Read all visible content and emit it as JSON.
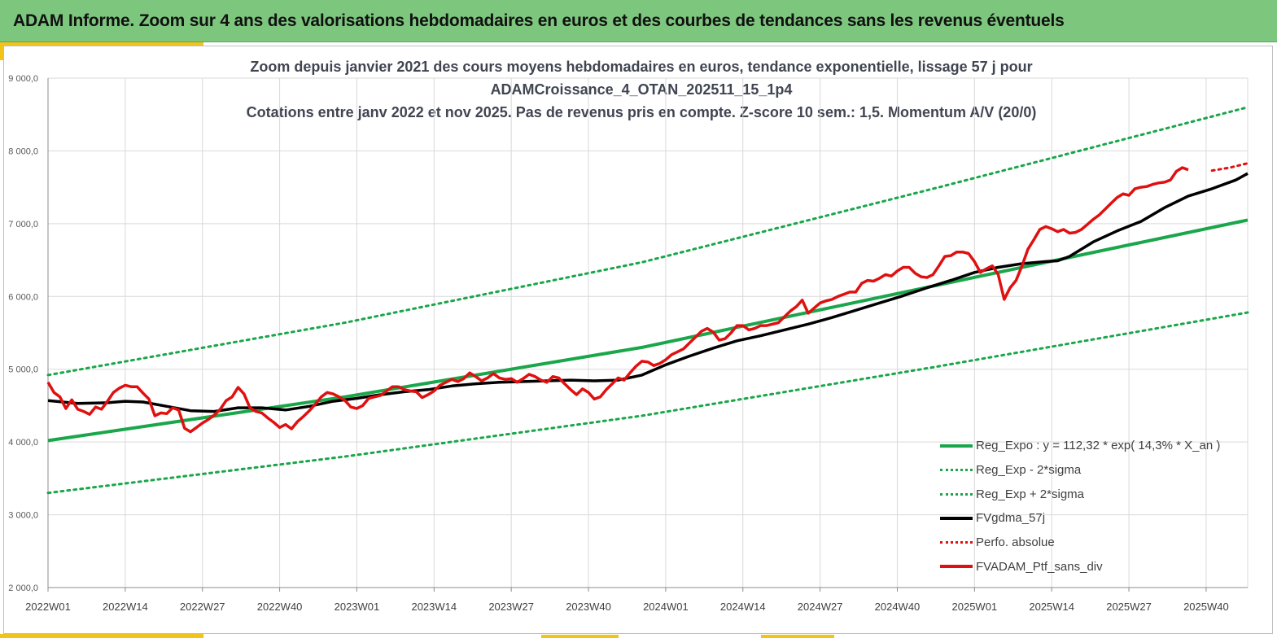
{
  "banner": {
    "title": "ADAM Informe. Zoom sur 4 ans des valorisations hebdomadaires en euros et des courbes de tendances sans les revenus éventuels"
  },
  "chart_data": {
    "type": "line",
    "title_lines": [
      "Zoom depuis janvier 2021 des cours moyens hebdomadaires  en euros, tendance exponentielle, lissage 57 j pour",
      "ADAMCroissance_4_OTAN_202511_15_1p4",
      "Cotations entre janv 2022 et nov 2025. Pas de revenus pris en compte. Z-score 10 sem.: 1,5. Momentum A/V (20/0)"
    ],
    "ylim": [
      2000,
      9000
    ],
    "yticks": [
      {
        "value": 2000,
        "label": "2 000,0"
      },
      {
        "value": 3000,
        "label": "3 000,0"
      },
      {
        "value": 4000,
        "label": "4 000,0"
      },
      {
        "value": 5000,
        "label": "5 000,0"
      },
      {
        "value": 6000,
        "label": "6 000,0"
      },
      {
        "value": 7000,
        "label": "7 000,0"
      },
      {
        "value": 8000,
        "label": "8 000,0"
      },
      {
        "value": 9000,
        "label": "9 000,0"
      }
    ],
    "xlim": [
      0,
      202
    ],
    "xticks": [
      {
        "value": 0,
        "label": "2022W01"
      },
      {
        "value": 13,
        "label": "2022W14"
      },
      {
        "value": 26,
        "label": "2022W27"
      },
      {
        "value": 39,
        "label": "2022W40"
      },
      {
        "value": 52,
        "label": "2023W01"
      },
      {
        "value": 65,
        "label": "2023W14"
      },
      {
        "value": 78,
        "label": "2023W27"
      },
      {
        "value": 91,
        "label": "2023W40"
      },
      {
        "value": 104,
        "label": "2024W01"
      },
      {
        "value": 117,
        "label": "2024W14"
      },
      {
        "value": 130,
        "label": "2024W27"
      },
      {
        "value": 143,
        "label": "2024W40"
      },
      {
        "value": 156,
        "label": "2025W01"
      },
      {
        "value": 169,
        "label": "2025W14"
      },
      {
        "value": 182,
        "label": "2025W27"
      },
      {
        "value": 195,
        "label": "2025W40"
      }
    ],
    "grid": true,
    "legend_position": "bottom-right",
    "series": [
      {
        "name": "Reg_Expo : y = 112,32 * exp( 14,3% *  X_an )",
        "color": "#1aa64a",
        "style": "solid",
        "width": 4,
        "points": [
          [
            0,
            4020
          ],
          [
            50,
            4620
          ],
          [
            100,
            5300
          ],
          [
            150,
            6160
          ],
          [
            202,
            7050
          ]
        ]
      },
      {
        "name": "Reg_Exp - 2*sigma",
        "color": "#1aa64a",
        "style": "dotted",
        "width": 3,
        "points": [
          [
            0,
            3300
          ],
          [
            50,
            3800
          ],
          [
            100,
            4360
          ],
          [
            150,
            5040
          ],
          [
            202,
            5780
          ]
        ]
      },
      {
        "name": "Reg_Exp + 2*sigma",
        "color": "#1aa64a",
        "style": "dotted",
        "width": 3,
        "points": [
          [
            0,
            4920
          ],
          [
            50,
            5640
          ],
          [
            100,
            6470
          ],
          [
            150,
            7500
          ],
          [
            202,
            8600
          ]
        ]
      },
      {
        "name": "FVgdma_57j",
        "color": "#000000",
        "style": "solid",
        "width": 3.5,
        "points": [
          [
            0,
            4570
          ],
          [
            5,
            4530
          ],
          [
            10,
            4540
          ],
          [
            13,
            4560
          ],
          [
            16,
            4550
          ],
          [
            20,
            4490
          ],
          [
            24,
            4430
          ],
          [
            28,
            4420
          ],
          [
            32,
            4470
          ],
          [
            36,
            4470
          ],
          [
            40,
            4440
          ],
          [
            44,
            4490
          ],
          [
            48,
            4560
          ],
          [
            52,
            4600
          ],
          [
            56,
            4650
          ],
          [
            60,
            4690
          ],
          [
            64,
            4720
          ],
          [
            68,
            4770
          ],
          [
            72,
            4800
          ],
          [
            76,
            4820
          ],
          [
            80,
            4830
          ],
          [
            84,
            4840
          ],
          [
            88,
            4850
          ],
          [
            92,
            4840
          ],
          [
            96,
            4850
          ],
          [
            100,
            4920
          ],
          [
            104,
            5060
          ],
          [
            108,
            5180
          ],
          [
            112,
            5290
          ],
          [
            116,
            5390
          ],
          [
            120,
            5460
          ],
          [
            124,
            5540
          ],
          [
            128,
            5620
          ],
          [
            132,
            5710
          ],
          [
            136,
            5810
          ],
          [
            140,
            5910
          ],
          [
            144,
            6010
          ],
          [
            148,
            6120
          ],
          [
            152,
            6220
          ],
          [
            156,
            6330
          ],
          [
            160,
            6400
          ],
          [
            164,
            6450
          ],
          [
            168,
            6480
          ],
          [
            170,
            6490
          ],
          [
            172,
            6550
          ],
          [
            176,
            6750
          ],
          [
            180,
            6900
          ],
          [
            184,
            7030
          ],
          [
            188,
            7220
          ],
          [
            192,
            7380
          ],
          [
            196,
            7480
          ],
          [
            200,
            7600
          ],
          [
            202,
            7690
          ]
        ]
      },
      {
        "name": "Perfo. absolue",
        "color": "#e01010",
        "style": "dotted",
        "width": 3,
        "points": [
          [
            196,
            7730
          ],
          [
            199,
            7770
          ],
          [
            202,
            7830
          ]
        ]
      },
      {
        "name": "FVADAM_Ptf_sans_div",
        "color": "#e01010",
        "style": "solid",
        "width": 3.5,
        "points": [
          [
            0,
            4820
          ],
          [
            1,
            4680
          ],
          [
            2,
            4620
          ],
          [
            3,
            4460
          ],
          [
            4,
            4580
          ],
          [
            5,
            4450
          ],
          [
            6,
            4420
          ],
          [
            7,
            4380
          ],
          [
            8,
            4480
          ],
          [
            9,
            4450
          ],
          [
            10,
            4560
          ],
          [
            11,
            4680
          ],
          [
            12,
            4740
          ],
          [
            13,
            4780
          ],
          [
            14,
            4760
          ],
          [
            15,
            4760
          ],
          [
            16,
            4670
          ],
          [
            17,
            4590
          ],
          [
            18,
            4360
          ],
          [
            19,
            4400
          ],
          [
            20,
            4390
          ],
          [
            21,
            4470
          ],
          [
            22,
            4440
          ],
          [
            23,
            4190
          ],
          [
            24,
            4140
          ],
          [
            25,
            4200
          ],
          [
            26,
            4260
          ],
          [
            27,
            4310
          ],
          [
            28,
            4370
          ],
          [
            29,
            4450
          ],
          [
            30,
            4570
          ],
          [
            31,
            4620
          ],
          [
            32,
            4750
          ],
          [
            33,
            4660
          ],
          [
            34,
            4470
          ],
          [
            35,
            4420
          ],
          [
            36,
            4400
          ],
          [
            37,
            4330
          ],
          [
            38,
            4270
          ],
          [
            39,
            4200
          ],
          [
            40,
            4240
          ],
          [
            41,
            4180
          ],
          [
            42,
            4280
          ],
          [
            43,
            4350
          ],
          [
            44,
            4430
          ],
          [
            45,
            4520
          ],
          [
            46,
            4620
          ],
          [
            47,
            4680
          ],
          [
            48,
            4660
          ],
          [
            49,
            4620
          ],
          [
            50,
            4570
          ],
          [
            51,
            4480
          ],
          [
            52,
            4460
          ],
          [
            53,
            4500
          ],
          [
            54,
            4600
          ],
          [
            55,
            4620
          ],
          [
            56,
            4640
          ],
          [
            57,
            4700
          ],
          [
            58,
            4760
          ],
          [
            59,
            4760
          ],
          [
            60,
            4720
          ],
          [
            61,
            4700
          ],
          [
            62,
            4690
          ],
          [
            63,
            4610
          ],
          [
            64,
            4650
          ],
          [
            65,
            4700
          ],
          [
            66,
            4780
          ],
          [
            67,
            4820
          ],
          [
            68,
            4860
          ],
          [
            69,
            4830
          ],
          [
            70,
            4870
          ],
          [
            71,
            4950
          ],
          [
            72,
            4900
          ],
          [
            73,
            4840
          ],
          [
            74,
            4880
          ],
          [
            75,
            4940
          ],
          [
            76,
            4880
          ],
          [
            77,
            4860
          ],
          [
            78,
            4870
          ],
          [
            79,
            4820
          ],
          [
            80,
            4870
          ],
          [
            81,
            4930
          ],
          [
            82,
            4900
          ],
          [
            83,
            4850
          ],
          [
            84,
            4820
          ],
          [
            85,
            4900
          ],
          [
            86,
            4880
          ],
          [
            87,
            4800
          ],
          [
            88,
            4720
          ],
          [
            89,
            4650
          ],
          [
            90,
            4730
          ],
          [
            91,
            4680
          ],
          [
            92,
            4590
          ],
          [
            93,
            4620
          ],
          [
            94,
            4720
          ],
          [
            95,
            4800
          ],
          [
            96,
            4880
          ],
          [
            97,
            4850
          ],
          [
            98,
            4950
          ],
          [
            99,
            5040
          ],
          [
            100,
            5110
          ],
          [
            101,
            5100
          ],
          [
            102,
            5050
          ],
          [
            103,
            5080
          ],
          [
            104,
            5130
          ],
          [
            105,
            5200
          ],
          [
            106,
            5240
          ],
          [
            107,
            5280
          ],
          [
            108,
            5360
          ],
          [
            109,
            5440
          ],
          [
            110,
            5520
          ],
          [
            111,
            5560
          ],
          [
            112,
            5510
          ],
          [
            113,
            5400
          ],
          [
            114,
            5420
          ],
          [
            115,
            5500
          ],
          [
            116,
            5600
          ],
          [
            117,
            5600
          ],
          [
            118,
            5540
          ],
          [
            119,
            5560
          ],
          [
            120,
            5600
          ],
          [
            121,
            5600
          ],
          [
            122,
            5620
          ],
          [
            123,
            5640
          ],
          [
            124,
            5720
          ],
          [
            125,
            5800
          ],
          [
            126,
            5860
          ],
          [
            127,
            5950
          ],
          [
            128,
            5770
          ],
          [
            129,
            5840
          ],
          [
            130,
            5910
          ],
          [
            131,
            5940
          ],
          [
            132,
            5960
          ],
          [
            133,
            6000
          ],
          [
            134,
            6030
          ],
          [
            135,
            6060
          ],
          [
            136,
            6060
          ],
          [
            137,
            6180
          ],
          [
            138,
            6220
          ],
          [
            139,
            6210
          ],
          [
            140,
            6250
          ],
          [
            141,
            6300
          ],
          [
            142,
            6280
          ],
          [
            143,
            6350
          ],
          [
            144,
            6400
          ],
          [
            145,
            6400
          ],
          [
            146,
            6320
          ],
          [
            147,
            6270
          ],
          [
            148,
            6260
          ],
          [
            149,
            6300
          ],
          [
            150,
            6420
          ],
          [
            151,
            6550
          ],
          [
            152,
            6560
          ],
          [
            153,
            6610
          ],
          [
            154,
            6610
          ],
          [
            155,
            6590
          ],
          [
            156,
            6480
          ],
          [
            157,
            6330
          ],
          [
            158,
            6380
          ],
          [
            159,
            6420
          ],
          [
            160,
            6300
          ],
          [
            161,
            5960
          ],
          [
            162,
            6120
          ],
          [
            163,
            6220
          ],
          [
            164,
            6420
          ],
          [
            165,
            6650
          ],
          [
            166,
            6780
          ],
          [
            167,
            6920
          ],
          [
            168,
            6960
          ],
          [
            169,
            6930
          ],
          [
            170,
            6890
          ],
          [
            171,
            6920
          ],
          [
            172,
            6870
          ],
          [
            173,
            6880
          ],
          [
            174,
            6920
          ],
          [
            175,
            6990
          ],
          [
            176,
            7060
          ],
          [
            177,
            7120
          ],
          [
            178,
            7200
          ],
          [
            179,
            7280
          ],
          [
            180,
            7360
          ],
          [
            181,
            7410
          ],
          [
            182,
            7390
          ],
          [
            183,
            7480
          ],
          [
            184,
            7500
          ],
          [
            185,
            7510
          ],
          [
            186,
            7540
          ],
          [
            187,
            7560
          ],
          [
            188,
            7570
          ],
          [
            189,
            7600
          ],
          [
            190,
            7720
          ],
          [
            191,
            7770
          ],
          [
            192,
            7740
          ]
        ]
      }
    ]
  }
}
